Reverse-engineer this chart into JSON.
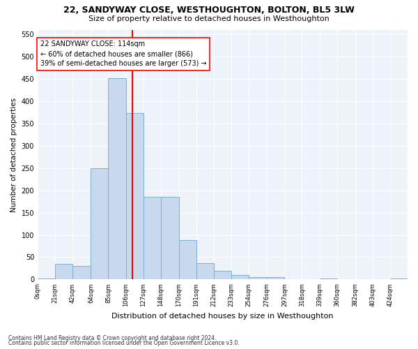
{
  "title": "22, SANDYWAY CLOSE, WESTHOUGHTON, BOLTON, BL5 3LW",
  "subtitle": "Size of property relative to detached houses in Westhoughton",
  "xlabel": "Distribution of detached houses by size in Westhoughton",
  "ylabel": "Number of detached properties",
  "footnote1": "Contains HM Land Registry data © Crown copyright and database right 2024.",
  "footnote2": "Contains public sector information licensed under the Open Government Licence v3.0.",
  "bin_labels": [
    "0sqm",
    "21sqm",
    "42sqm",
    "64sqm",
    "85sqm",
    "106sqm",
    "127sqm",
    "148sqm",
    "170sqm",
    "191sqm",
    "212sqm",
    "233sqm",
    "254sqm",
    "276sqm",
    "297sqm",
    "318sqm",
    "339sqm",
    "360sqm",
    "382sqm",
    "403sqm",
    "424sqm"
  ],
  "bar_heights": [
    2,
    35,
    30,
    250,
    452,
    373,
    185,
    185,
    88,
    37,
    19,
    10,
    6,
    5,
    1,
    0,
    3,
    0,
    0,
    0,
    2
  ],
  "bar_color": "#c9d9ed",
  "bar_edge_color": "#7bafd4",
  "vline_x": 114,
  "vline_color": "red",
  "annotation_text": "22 SANDYWAY CLOSE: 114sqm\n← 60% of detached houses are smaller (866)\n39% of semi-detached houses are larger (573) →",
  "annotation_box_color": "white",
  "annotation_box_edge_color": "red",
  "ylim": [
    0,
    560
  ],
  "yticks": [
    0,
    50,
    100,
    150,
    200,
    250,
    300,
    350,
    400,
    450,
    500,
    550
  ],
  "bg_color": "#eef2f9",
  "grid_color": "white",
  "bin_edges": [
    0,
    21,
    42,
    64,
    85,
    106,
    127,
    148,
    170,
    191,
    212,
    233,
    254,
    276,
    297,
    318,
    339,
    360,
    382,
    403,
    424,
    445
  ]
}
